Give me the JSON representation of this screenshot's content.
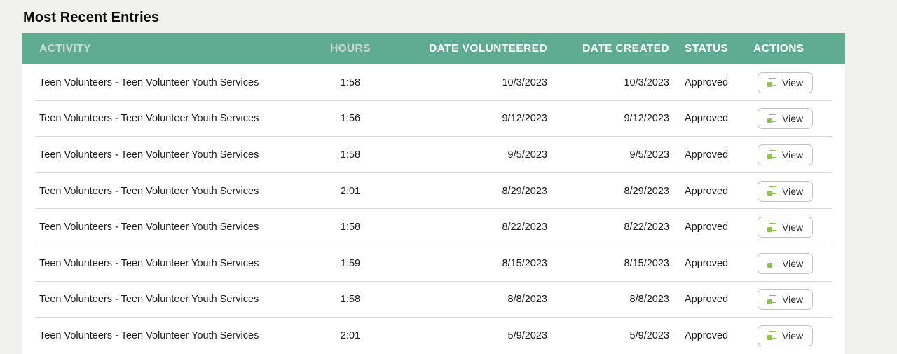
{
  "title": "Most Recent Entries",
  "table": {
    "columns": [
      {
        "label": "ACTIVITY"
      },
      {
        "label": "HOURS"
      },
      {
        "label": "DATE VOLUNTEERED"
      },
      {
        "label": "DATE CREATED"
      },
      {
        "label": "STATUS"
      },
      {
        "label": "ACTIONS"
      }
    ],
    "view_button_label": "View",
    "view_button_icon": "open-window-icon",
    "rows": [
      {
        "activity": "Teen Volunteers - Teen Volunteer Youth Services",
        "hours": "1:58",
        "date_volunteered": "10/3/2023",
        "date_created": "10/3/2023",
        "status": "Approved"
      },
      {
        "activity": "Teen Volunteers - Teen Volunteer Youth Services",
        "hours": "1:56",
        "date_volunteered": "9/12/2023",
        "date_created": "9/12/2023",
        "status": "Approved"
      },
      {
        "activity": "Teen Volunteers - Teen Volunteer Youth Services",
        "hours": "1:58",
        "date_volunteered": "9/5/2023",
        "date_created": "9/5/2023",
        "status": "Approved"
      },
      {
        "activity": "Teen Volunteers - Teen Volunteer Youth Services",
        "hours": "2:01",
        "date_volunteered": "8/29/2023",
        "date_created": "8/29/2023",
        "status": "Approved"
      },
      {
        "activity": "Teen Volunteers - Teen Volunteer Youth Services",
        "hours": "1:58",
        "date_volunteered": "8/22/2023",
        "date_created": "8/22/2023",
        "status": "Approved"
      },
      {
        "activity": "Teen Volunteers - Teen Volunteer Youth Services",
        "hours": "1:59",
        "date_volunteered": "8/15/2023",
        "date_created": "8/15/2023",
        "status": "Approved"
      },
      {
        "activity": "Teen Volunteers - Teen Volunteer Youth Services",
        "hours": "1:58",
        "date_volunteered": "8/8/2023",
        "date_created": "8/8/2023",
        "status": "Approved"
      },
      {
        "activity": "Teen Volunteers - Teen Volunteer Youth Services",
        "hours": "2:01",
        "date_volunteered": "5/9/2023",
        "date_created": "5/9/2023",
        "status": "Approved"
      }
    ]
  },
  "colors": {
    "page_background": "#f0f0ee",
    "header_background": "#5fac93",
    "header_text": "#ffffff",
    "header_text_muted": "#ced7d2",
    "row_text": "#1b1b1b",
    "separator": "#d9d9d9",
    "view_icon_green": "#8cc63e",
    "button_border": "#c2c2c2"
  }
}
